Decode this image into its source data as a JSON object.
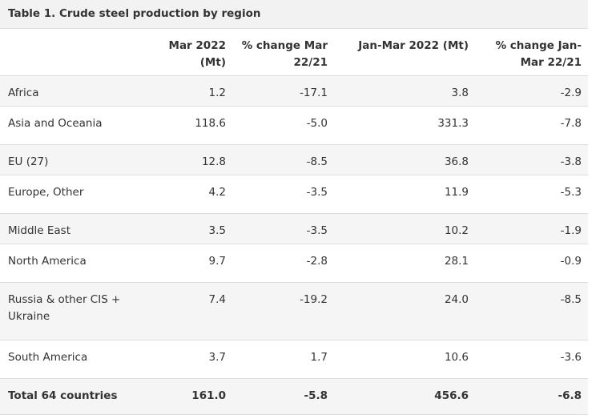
{
  "table": {
    "caption": "Table 1. Crude steel production by region",
    "headers": [
      "",
      "Mar 2022 (Mt)",
      "% change Mar 22/21",
      "Jan-Mar 2022 (Mt)",
      "% change Jan-Mar 22/21"
    ],
    "rows": [
      {
        "region": "Africa",
        "mar": "1.2",
        "mar_change": "-17.1",
        "ytd": "3.8",
        "ytd_change": "-2.9"
      },
      {
        "region": "Asia and Oceania",
        "mar": "118.6",
        "mar_change": "-5.0",
        "ytd": "331.3",
        "ytd_change": "-7.8"
      },
      {
        "region": "EU (27)",
        "mar": "12.8",
        "mar_change": "-8.5",
        "ytd": "36.8",
        "ytd_change": "-3.8"
      },
      {
        "region": "Europe, Other",
        "mar": "4.2",
        "mar_change": "-3.5",
        "ytd": "11.9",
        "ytd_change": "-5.3"
      },
      {
        "region": "Middle East",
        "mar": "3.5",
        "mar_change": "-3.5",
        "ytd": "10.2",
        "ytd_change": "-1.9"
      },
      {
        "region": "North America",
        "mar": "9.7",
        "mar_change": "-2.8",
        "ytd": "28.1",
        "ytd_change": "-0.9"
      },
      {
        "region": "Russia & other CIS + Ukraine",
        "mar": "7.4",
        "mar_change": "-19.2",
        "ytd": "24.0",
        "ytd_change": "-8.5"
      },
      {
        "region": "South America",
        "mar": "3.7",
        "mar_change": "1.7",
        "ytd": "10.6",
        "ytd_change": "-3.6"
      }
    ],
    "total": {
      "region": "Total 64 countries",
      "mar": "161.0",
      "mar_change": "-5.8",
      "ytd": "456.6",
      "ytd_change": "-6.8"
    }
  }
}
